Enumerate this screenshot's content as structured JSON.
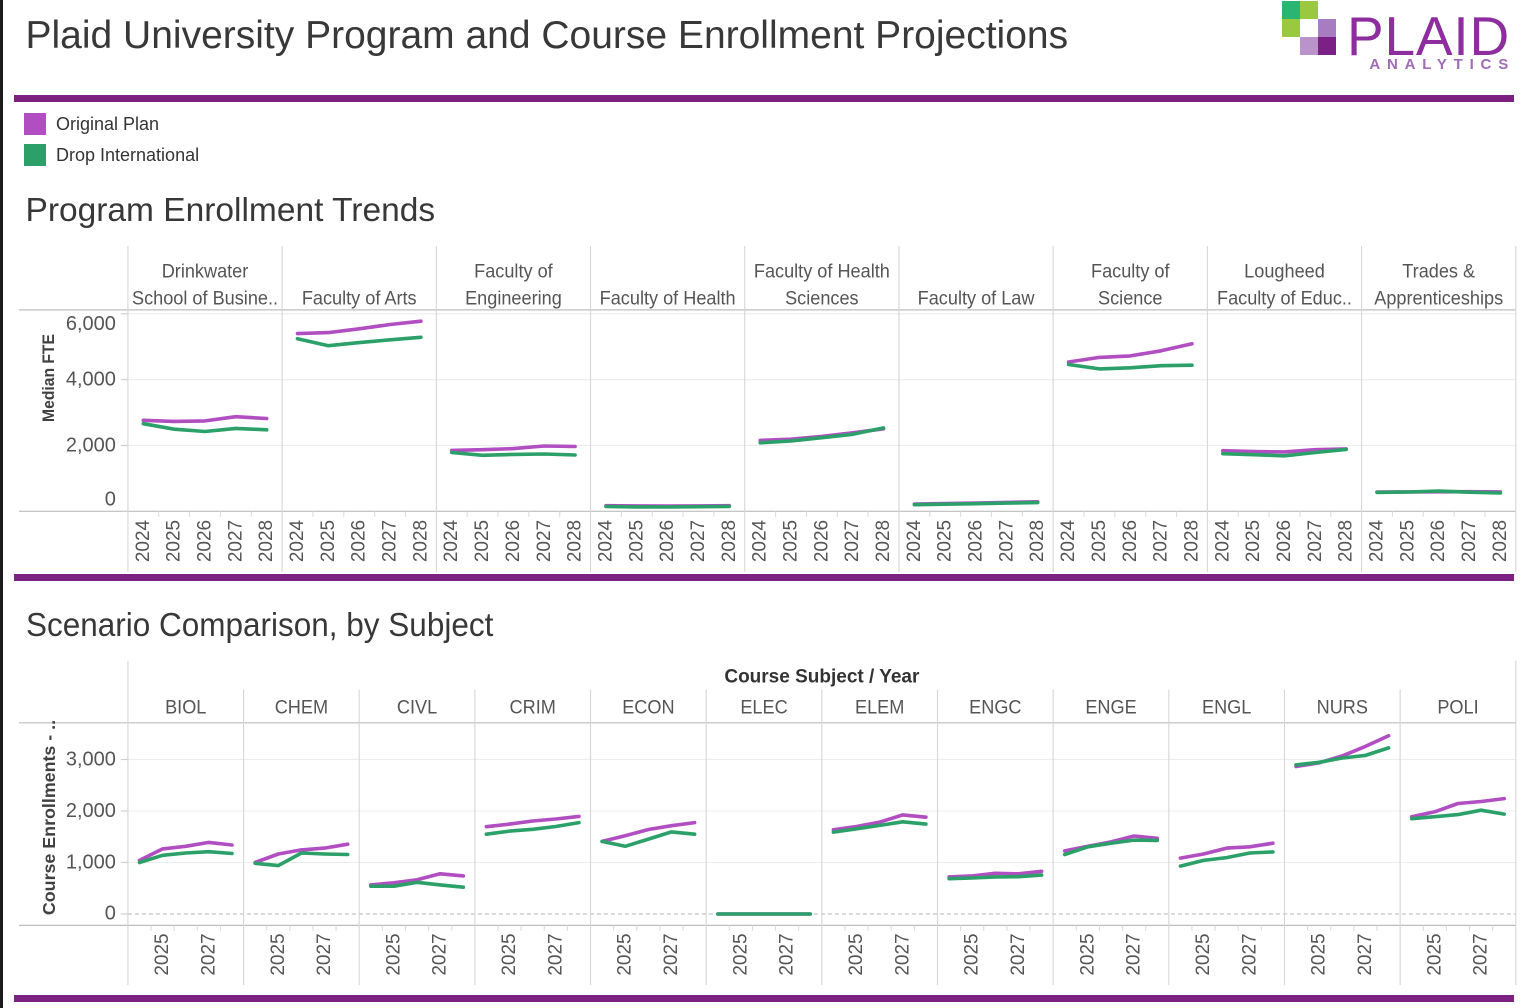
{
  "header": {
    "title": "Plaid University Program and Course Enrollment Projections",
    "logo": {
      "brand": "PLAID",
      "tagline": "ANALYTICS",
      "squares": [
        {
          "row": 0,
          "col": 0,
          "color": "#2ab573"
        },
        {
          "row": 0,
          "col": 1,
          "color": "#9ac83e"
        },
        {
          "row": 1,
          "col": 0,
          "color": "#9ac83e"
        },
        {
          "row": 1,
          "col": 2,
          "color": "#a87cc0"
        },
        {
          "row": 2,
          "col": 1,
          "color": "#b993c9"
        },
        {
          "row": 2,
          "col": 2,
          "color": "#7b2084"
        }
      ]
    }
  },
  "colors": {
    "accent_bar": "#7c2182",
    "original_plan": "#b14ec2",
    "drop_international": "#2ba169",
    "title_text": "#3a3a3a",
    "axis_text": "#555555"
  },
  "legend": {
    "items": [
      {
        "label": "Original Plan",
        "color": "#b14ec2"
      },
      {
        "label": "Drop International",
        "color": "#2ba169"
      }
    ]
  },
  "sections": [
    {
      "title": "Program Enrollment Trends"
    },
    {
      "title": "Scenario Comparison, by Subject"
    }
  ],
  "chart_data": [
    {
      "type": "line",
      "title": "Program Enrollment Trends",
      "ylabel": "Median FTE",
      "x": [
        "2024",
        "2025",
        "2026",
        "2027",
        "2028"
      ],
      "x_labeled": [
        "2024",
        "2025",
        "2026",
        "2027",
        "2028"
      ],
      "yticks": [
        0,
        2000,
        4000,
        6000
      ],
      "ylim": [
        0,
        6130
      ],
      "grid": "horizontal",
      "legend_position": "top-left-of-dashboard",
      "series_names": [
        "Original Plan",
        "Drop International"
      ],
      "panels": [
        {
          "category": "Drinkwater School of Business",
          "header_lines": [
            "Drinkwater",
            "School of Busine.."
          ],
          "original_plan": [
            2765,
            2730,
            2745,
            2875,
            2820
          ],
          "drop_international": [
            2660,
            2495,
            2425,
            2520,
            2475
          ]
        },
        {
          "category": "Faculty of Arts",
          "header_lines": [
            "Faculty of Arts"
          ],
          "original_plan": [
            5400,
            5430,
            5545,
            5675,
            5775
          ],
          "drop_international": [
            5245,
            5030,
            5125,
            5210,
            5285
          ]
        },
        {
          "category": "Faculty of Engineering",
          "header_lines": [
            "Faculty of",
            "Engineering"
          ],
          "original_plan": [
            1850,
            1870,
            1905,
            1985,
            1970
          ],
          "drop_international": [
            1785,
            1700,
            1730,
            1740,
            1710
          ]
        },
        {
          "category": "Faculty of Health",
          "header_lines": [
            "Faculty of Health"
          ],
          "original_plan": [
            170,
            165,
            160,
            165,
            170
          ],
          "drop_international": [
            145,
            135,
            130,
            140,
            145
          ]
        },
        {
          "category": "Faculty of Health Sciences",
          "header_lines": [
            "Faculty of Health",
            "Sciences"
          ],
          "original_plan": [
            2155,
            2190,
            2275,
            2385,
            2505
          ],
          "drop_international": [
            2080,
            2140,
            2235,
            2340,
            2535
          ]
        },
        {
          "category": "Faculty of Law",
          "header_lines": [
            "Faculty of Law"
          ],
          "original_plan": [
            220,
            235,
            250,
            270,
            290
          ],
          "drop_international": [
            200,
            215,
            230,
            250,
            265
          ]
        },
        {
          "category": "Faculty of Science",
          "header_lines": [
            "Faculty of",
            "Science"
          ],
          "original_plan": [
            4535,
            4675,
            4720,
            4875,
            5090
          ],
          "drop_international": [
            4460,
            4325,
            4360,
            4425,
            4440
          ]
        },
        {
          "category": "Lougheed Faculty of Education",
          "header_lines": [
            "Lougheed",
            "Faculty of Educ.."
          ],
          "original_plan": [
            1840,
            1815,
            1805,
            1870,
            1895
          ],
          "drop_international": [
            1750,
            1720,
            1685,
            1785,
            1880
          ]
        },
        {
          "category": "Trades & Apprenticeships",
          "header_lines": [
            "Trades &",
            "Apprenticeships"
          ],
          "original_plan": [
            585,
            590,
            592,
            594,
            588
          ],
          "drop_international": [
            575,
            585,
            615,
            580,
            555
          ]
        }
      ]
    },
    {
      "type": "line",
      "title": "Scenario Comparison, by Subject",
      "axis_header": "Course Subject  /  Year",
      "ylabel": "Course Enrollments - ..",
      "x": [
        "2024",
        "2025",
        "2026",
        "2027",
        "2028"
      ],
      "x_labeled": [
        "2025",
        "2027"
      ],
      "yticks": [
        0,
        1000,
        2000,
        3000
      ],
      "ylim": [
        -220,
        3720
      ],
      "grid": "horizontal",
      "zero_line": "dashed",
      "series_names": [
        "Original Plan",
        "Drop International"
      ],
      "panels": [
        {
          "category": "BIOL",
          "header_lines": [
            "BIOL"
          ],
          "original_plan": [
            1040,
            1265,
            1315,
            1390,
            1340
          ],
          "drop_international": [
            1000,
            1140,
            1185,
            1210,
            1175
          ]
        },
        {
          "category": "CHEM",
          "header_lines": [
            "CHEM"
          ],
          "original_plan": [
            1000,
            1165,
            1245,
            1280,
            1355
          ],
          "drop_international": [
            985,
            940,
            1185,
            1165,
            1155
          ]
        },
        {
          "category": "CIVL",
          "header_lines": [
            "CIVL"
          ],
          "original_plan": [
            565,
            605,
            665,
            780,
            740
          ],
          "drop_international": [
            540,
            540,
            615,
            565,
            520
          ]
        },
        {
          "category": "CRIM",
          "header_lines": [
            "CRIM"
          ],
          "original_plan": [
            1695,
            1745,
            1805,
            1845,
            1895
          ],
          "drop_international": [
            1550,
            1610,
            1645,
            1700,
            1775
          ]
        },
        {
          "category": "ECON",
          "header_lines": [
            "ECON"
          ],
          "original_plan": [
            1410,
            1520,
            1640,
            1715,
            1775
          ],
          "drop_international": [
            1410,
            1315,
            1455,
            1595,
            1550
          ]
        },
        {
          "category": "ELEC",
          "header_lines": [
            "ELEC"
          ],
          "original_plan": [
            0,
            0,
            0,
            0,
            0
          ],
          "drop_international": [
            0,
            0,
            0,
            0,
            0
          ]
        },
        {
          "category": "ELEM",
          "header_lines": [
            "ELEM"
          ],
          "original_plan": [
            1635,
            1700,
            1785,
            1925,
            1880
          ],
          "drop_international": [
            1590,
            1655,
            1720,
            1790,
            1745
          ]
        },
        {
          "category": "ENGC",
          "header_lines": [
            "ENGC"
          ],
          "original_plan": [
            720,
            740,
            790,
            780,
            830
          ],
          "drop_international": [
            685,
            700,
            720,
            725,
            755
          ]
        },
        {
          "category": "ENGE",
          "header_lines": [
            "ENGE"
          ],
          "original_plan": [
            1225,
            1315,
            1400,
            1515,
            1470
          ],
          "drop_international": [
            1155,
            1305,
            1375,
            1435,
            1430
          ]
        },
        {
          "category": "ENGL",
          "header_lines": [
            "ENGL"
          ],
          "original_plan": [
            1085,
            1165,
            1280,
            1305,
            1375
          ],
          "drop_international": [
            930,
            1040,
            1095,
            1185,
            1205
          ]
        },
        {
          "category": "NURS",
          "header_lines": [
            "NURS"
          ],
          "original_plan": [
            2865,
            2935,
            3070,
            3255,
            3460
          ],
          "drop_international": [
            2895,
            2945,
            3030,
            3080,
            3225
          ]
        },
        {
          "category": "POLI",
          "header_lines": [
            "POLI"
          ],
          "original_plan": [
            1890,
            1985,
            2145,
            2185,
            2240
          ],
          "drop_international": [
            1850,
            1890,
            1930,
            2015,
            1940
          ]
        }
      ]
    }
  ]
}
